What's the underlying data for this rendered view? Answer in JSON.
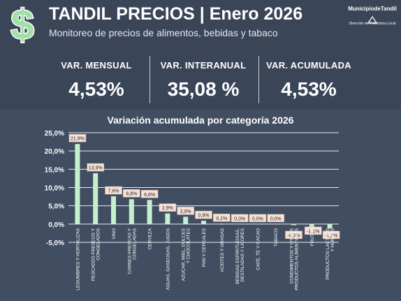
{
  "header": {
    "title": "TANDIL PRECIOS | Enero 2026",
    "subtitle": "Monitoreo de precios de alimentos, bebidas y tabaco",
    "logo_name": "MunicipiodeTandil",
    "logo_sub": "Dirección de Estadística Local"
  },
  "kpis": [
    {
      "label": "VAR. MENSUAL",
      "value": "4,53%"
    },
    {
      "label": "VAR. INTERANUAL",
      "value": "35,08 %"
    },
    {
      "label": "VAR. ACUMULADA",
      "value": "4,53%"
    }
  ],
  "colors": {
    "header_bg": "#3a4558",
    "panel_bg": "#414e62",
    "bar": "#c6efce",
    "label_bg": "#f7e1d6",
    "grid": "#e8eaee"
  },
  "icons": [
    "dollar-icon",
    "logo-mark-icon"
  ],
  "chart_data": {
    "type": "bar",
    "title": "Variación acumulada por categoría 2026",
    "categories": [
      "LEGUMBRES Y HORTALIZAS",
      "PESCADOS FRESCOS Y CONGELADOS",
      "VINO",
      "CARNES FRESCAS Y CONGELADAS",
      "CERVEZA",
      "AGUAS, GASEOSAS, JUGOS",
      "AZUCAR, MIEL, DULCES Y CHOCOLATES",
      "PAN Y CEREALES",
      "ACEITES Y GRASAS",
      "BEBIDAS ESPIRITUOSAS, DESTILADAS Y LICORES",
      "CAFÉ, TÉ Y CACAO",
      "TABACO",
      "CONDIMENTOS Y OTROS PRODUCTOS ALIMENTICIOS",
      "FRUTAS",
      "PRODUCTOS LACTEOS Y HUEVOS"
    ],
    "values": [
      21.9,
      13.9,
      7.6,
      6.8,
      6.6,
      2.9,
      2.0,
      0.9,
      0.1,
      0.0,
      0.0,
      0.0,
      -0.3,
      -1.1,
      -1.2
    ],
    "data_labels": [
      "21,9%",
      "13,9%",
      "7,6%",
      "6,8%",
      "6,6%",
      "2,9%",
      "2,0%",
      "0,9%",
      "0,1%",
      "0,0%",
      "0,0%",
      "0,0%",
      "-0,3%",
      "-1,1%",
      "-1,2%"
    ],
    "yticks": [
      25,
      20,
      15,
      10,
      5,
      0,
      -5
    ],
    "ytick_labels": [
      "25,0%",
      "20,0%",
      "15,0%",
      "10,0%",
      "5,0%",
      "0,0%",
      "-5,0%"
    ],
    "ylim": [
      -5,
      25
    ],
    "grid": true,
    "legend": "none"
  }
}
